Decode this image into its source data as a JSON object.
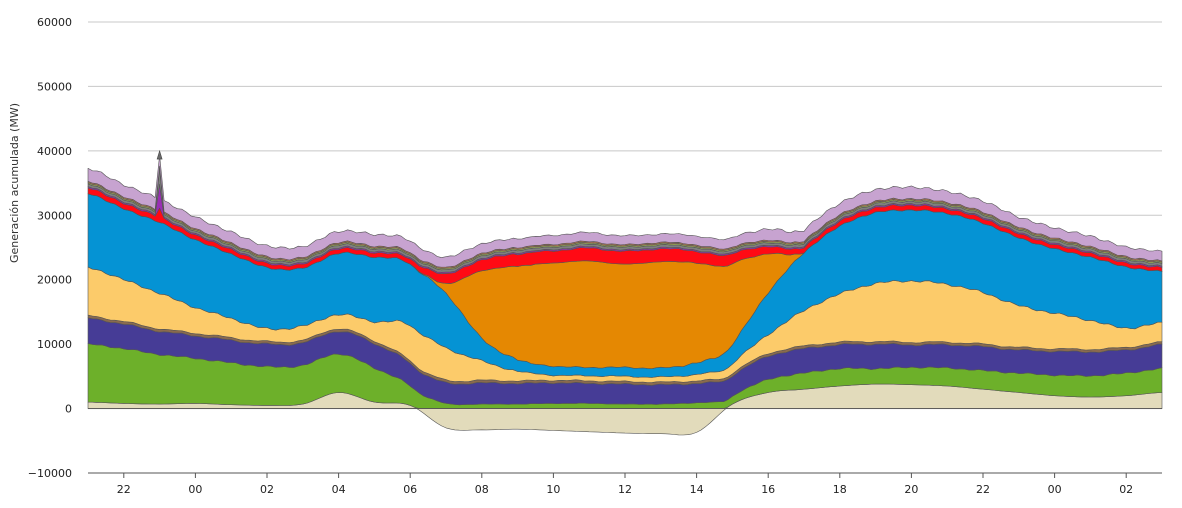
{
  "chart_data": {
    "type": "area",
    "stacked": true,
    "ylabel": "Generación acumulada (MW)",
    "ylim": [
      -10000,
      60000
    ],
    "y_ticks": [
      -10000,
      0,
      10000,
      20000,
      30000,
      40000,
      50000,
      60000
    ],
    "y_tick_labels": [
      "−10000",
      "0",
      "10000",
      "20000",
      "30000",
      "40000",
      "50000",
      "60000"
    ],
    "x_hours": [
      21,
      22,
      23,
      24,
      25,
      26,
      27,
      28,
      29,
      30,
      31,
      32,
      33,
      34,
      35,
      36,
      37,
      38,
      39,
      40,
      41,
      42,
      43,
      44,
      45,
      46,
      47,
      48,
      49,
      50,
      51
    ],
    "x_tick_labels": [
      "22",
      "00",
      "02",
      "04",
      "06",
      "08",
      "10",
      "12",
      "14",
      "16",
      "18",
      "20",
      "22",
      "00",
      "02"
    ],
    "x_tick_hours": [
      22,
      24,
      26,
      28,
      30,
      32,
      34,
      36,
      38,
      40,
      42,
      44,
      46,
      48,
      50
    ],
    "grid": "horizontal",
    "legend": "none",
    "series": [
      {
        "color": "#e2dbbb",
        "values": [
          1000,
          800,
          700,
          800,
          600,
          500,
          700,
          2500,
          1000,
          500,
          -3000,
          -3300,
          -3200,
          -3400,
          -3600,
          -3800,
          -3900,
          -3700,
          700,
          2500,
          3000,
          3500,
          3800,
          3700,
          3500,
          3000,
          2500,
          2000,
          1800,
          2000,
          2500
        ]
      },
      {
        "color": "#6db02a",
        "values": [
          9000,
          8500,
          7700,
          7000,
          6500,
          6000,
          6000,
          6000,
          5300,
          3000,
          800,
          700,
          700,
          800,
          800,
          700,
          700,
          900,
          1200,
          2000,
          2500,
          2700,
          2400,
          2700,
          2800,
          2900,
          3000,
          3200,
          3300,
          3500,
          3700
        ]
      },
      {
        "color": "#463c96",
        "values": [
          4000,
          3800,
          3600,
          3500,
          3500,
          3500,
          3500,
          3500,
          3800,
          3500,
          3200,
          3300,
          3200,
          3200,
          3100,
          3100,
          3000,
          3000,
          3200,
          3600,
          3800,
          3700,
          3800,
          3500,
          3600,
          3700,
          3600,
          3700,
          3700,
          3600,
          3700
        ]
      },
      {
        "color": "#8a6a4e",
        "values": [
          400,
          400,
          400,
          400,
          400,
          400,
          400,
          400,
          400,
          400,
          400,
          400,
          400,
          400,
          400,
          400,
          400,
          400,
          400,
          400,
          400,
          400,
          400,
          400,
          400,
          400,
          400,
          400,
          400,
          400,
          400
        ]
      },
      {
        "color": "#fccb6a",
        "values": [
          7500,
          6500,
          5500,
          4000,
          3000,
          2000,
          2200,
          2200,
          3000,
          5500,
          5000,
          3000,
          1500,
          800,
          800,
          800,
          800,
          1000,
          1500,
          3000,
          5500,
          7500,
          9000,
          9500,
          9000,
          8000,
          6500,
          5500,
          4500,
          3000,
          3000
        ]
      },
      {
        "color": "#0593d4",
        "values": [
          11500,
          11000,
          11000,
          10500,
          10000,
          9500,
          9000,
          9500,
          10000,
          9500,
          8500,
          3500,
          1800,
          1400,
          1300,
          1400,
          1400,
          1800,
          3000,
          6500,
          9000,
          10500,
          11000,
          11000,
          11000,
          10800,
          10500,
          10000,
          9800,
          9500,
          8000
        ]
      },
      {
        "color": "#e58802",
        "values": [
          0,
          0,
          0,
          0,
          0,
          0,
          0,
          0,
          0,
          0,
          1500,
          10500,
          14500,
          16000,
          16500,
          16000,
          16500,
          15500,
          12500,
          6000,
          0,
          0,
          0,
          0,
          0,
          0,
          0,
          0,
          0,
          0,
          0
        ]
      },
      {
        "color": "#ff0a14",
        "values": [
          900,
          850,
          800,
          750,
          700,
          650,
          650,
          700,
          700,
          800,
          1500,
          1700,
          1900,
          1900,
          2000,
          2000,
          2000,
          1800,
          1600,
          1100,
          800,
          750,
          750,
          750,
          700,
          700,
          650,
          650,
          650,
          600,
          600
        ]
      },
      {
        "color": "#9a2fb4",
        "values": [
          200,
          200,
          200,
          200,
          200,
          200,
          200,
          200,
          200,
          200,
          200,
          200,
          200,
          200,
          200,
          200,
          200,
          200,
          200,
          200,
          200,
          200,
          200,
          200,
          200,
          200,
          200,
          200,
          200,
          200,
          200
        ]
      },
      {
        "color": "#7f7f7f",
        "values": [
          400,
          400,
          400,
          400,
          400,
          400,
          400,
          400,
          400,
          400,
          400,
          400,
          400,
          400,
          400,
          400,
          400,
          400,
          400,
          400,
          400,
          400,
          400,
          400,
          400,
          400,
          400,
          400,
          400,
          400,
          400
        ]
      },
      {
        "color": "#a0b254",
        "values": [
          200,
          200,
          200,
          200,
          200,
          200,
          200,
          200,
          200,
          200,
          200,
          200,
          200,
          200,
          200,
          200,
          200,
          200,
          200,
          200,
          200,
          200,
          200,
          200,
          200,
          200,
          200,
          200,
          200,
          200,
          200
        ]
      },
      {
        "color": "#b77950",
        "values": [
          200,
          200,
          200,
          200,
          200,
          200,
          200,
          200,
          200,
          200,
          200,
          200,
          200,
          200,
          200,
          200,
          200,
          200,
          200,
          200,
          200,
          200,
          200,
          200,
          200,
          200,
          200,
          200,
          200,
          200,
          200
        ]
      },
      {
        "color": "#c7a3d0",
        "values": [
          2000,
          1900,
          1800,
          1800,
          1700,
          1700,
          1700,
          1700,
          1800,
          1800,
          1600,
          1500,
          1400,
          1400,
          1400,
          1400,
          1300,
          1400,
          1500,
          1700,
          1700,
          1800,
          1800,
          1800,
          1700,
          1700,
          1600,
          1600,
          1600,
          1500,
          1500
        ]
      }
    ],
    "spike": {
      "hour": 23.0,
      "total_peak": 40000
    }
  }
}
